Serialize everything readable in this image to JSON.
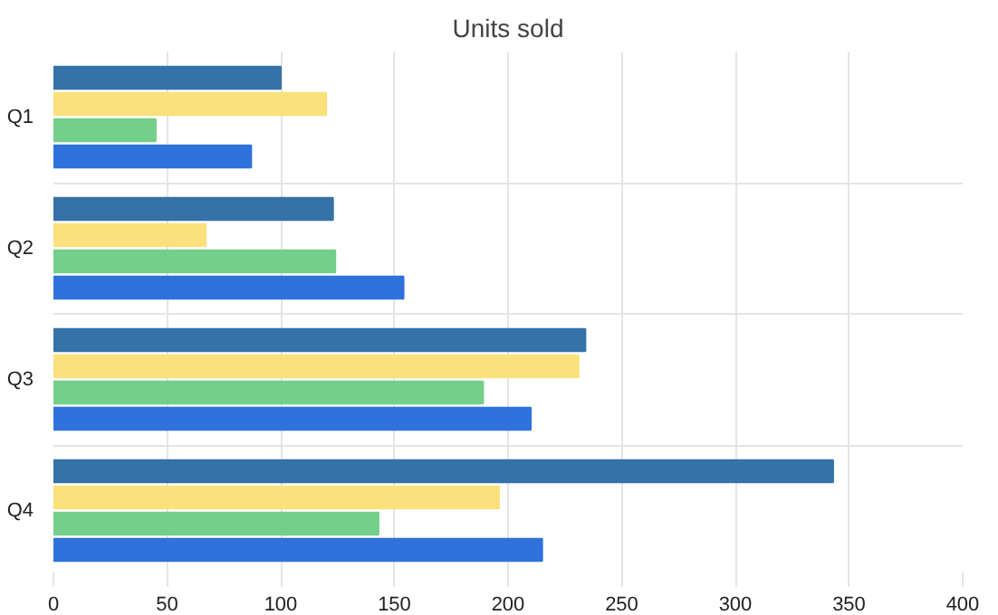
{
  "chart_data": {
    "type": "bar",
    "orientation": "horizontal",
    "title": "Units sold",
    "categories": [
      "Q1",
      "Q2",
      "Q3",
      "Q4"
    ],
    "series": [
      {
        "color": "#3572a8",
        "values": [
          100,
          123,
          234,
          343
        ]
      },
      {
        "color": "#fae17c",
        "values": [
          120,
          67,
          231,
          196
        ]
      },
      {
        "color": "#74cf8a",
        "values": [
          45,
          124,
          189,
          143
        ]
      },
      {
        "color": "#2f72dc",
        "values": [
          87,
          154,
          210,
          215
        ]
      }
    ],
    "xlim": [
      0,
      400
    ],
    "xticks": [
      0,
      50,
      100,
      150,
      200,
      250,
      300,
      350,
      400
    ],
    "grid": true
  }
}
